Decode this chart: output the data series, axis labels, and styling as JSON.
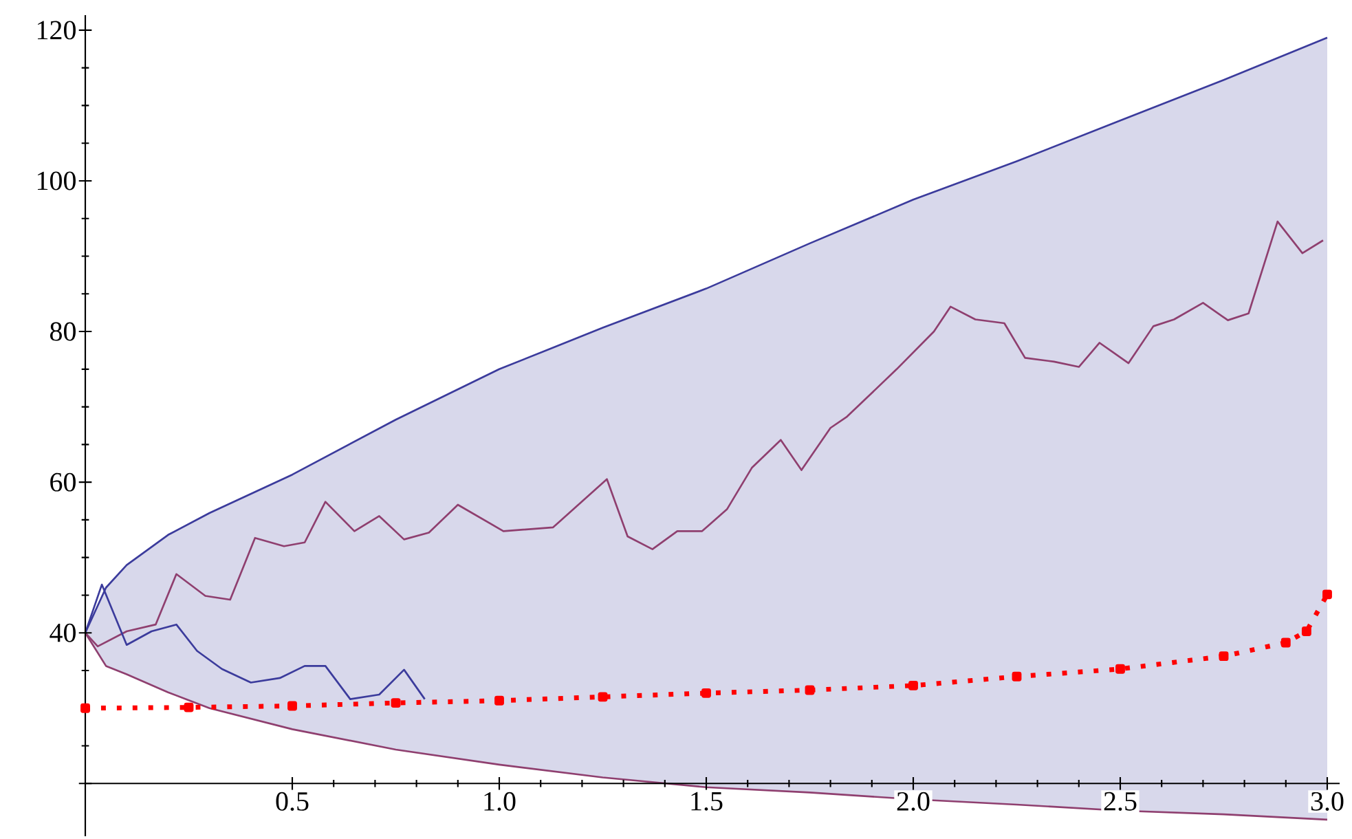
{
  "chart_data": {
    "type": "line",
    "xlim": [
      0,
      3.03
    ],
    "ylim": [
      13,
      122
    ],
    "xticks": [
      {
        "value": 0.5,
        "label": "0.5"
      },
      {
        "value": 1,
        "label": "1.0"
      },
      {
        "value": 1.5,
        "label": "1.5"
      },
      {
        "value": 2,
        "label": "2.0"
      },
      {
        "value": 2.5,
        "label": "2.5"
      },
      {
        "value": 3,
        "label": "3.0"
      }
    ],
    "yticks": [
      {
        "value": 20,
        "label": null
      },
      40,
      60,
      80,
      100,
      120
    ],
    "series": [
      {
        "color": "#3b3b9c",
        "x": [
          0,
          0.05,
          0.1,
          0.2,
          0.3,
          0.5,
          0.75,
          1,
          1.25,
          1.5,
          1.75,
          2,
          2.25,
          2.5,
          2.75,
          3
        ],
        "values": [
          40,
          46,
          49,
          53,
          55.9,
          61,
          68.3,
          75,
          80.5,
          85.7,
          91.7,
          97.5,
          102.6,
          108,
          113.4,
          119
        ],
        "lower": [
          40,
          35.6,
          34.5,
          32.1,
          30,
          27.2,
          24.5,
          22.5,
          20.8,
          19.5,
          18.8,
          17.9,
          17.2,
          16.4,
          15.9,
          15.2
        ],
        "upper": [
          40,
          46,
          49,
          53,
          55.9,
          61,
          68.3,
          75,
          80.5,
          85.7,
          91.7,
          97.5,
          102.6,
          108,
          113.4,
          119
        ]
      },
      {
        "color": "#8f3f6f",
        "x": [
          0,
          0.05,
          0.1,
          0.2,
          0.3,
          0.5,
          0.75,
          1,
          1.25,
          1.5,
          1.75,
          2,
          2.25,
          2.5,
          2.75,
          3
        ],
        "values": [
          40,
          35.6,
          34.5,
          32.1,
          30,
          27.2,
          24.5,
          22.5,
          20.8,
          19.5,
          18.8,
          17.9,
          17.2,
          16.4,
          15.9,
          15.2
        ]
      },
      {
        "color": "#8f3f6f",
        "x": [
          0,
          0.03,
          0.1,
          0.17,
          0.22,
          0.29,
          0.35,
          0.41,
          0.48,
          0.53,
          0.58,
          0.65,
          0.71,
          0.77,
          0.83,
          0.9,
          1.01,
          1.13,
          1.26,
          1.31,
          1.37,
          1.43,
          1.49,
          1.55,
          1.61,
          1.68,
          1.73,
          1.8,
          1.84,
          1.96,
          2.05,
          2.09,
          2.15,
          2.22,
          2.27,
          2.34,
          2.4,
          2.45,
          2.52,
          2.58,
          2.63,
          2.7,
          2.76,
          2.81,
          2.88,
          2.94,
          2.99
        ],
        "values": [
          40,
          38.2,
          40.2,
          41.1,
          47.8,
          44.9,
          44.4,
          52.6,
          51.5,
          52,
          57.4,
          53.5,
          55.5,
          52.4,
          53.3,
          57,
          53.5,
          54,
          60.4,
          52.8,
          51.1,
          53.5,
          53.5,
          56.4,
          61.9,
          65.6,
          61.6,
          67.2,
          68.7,
          75,
          80,
          83.3,
          81.6,
          81.1,
          76.5,
          76,
          75.3,
          78.5,
          75.8,
          80.7,
          81.6,
          83.8,
          81.5,
          82.4,
          94.6,
          90.4,
          92.1
        ]
      },
      {
        "color": "#3b3b9c",
        "x": [
          0,
          0.04,
          0.1,
          0.16,
          0.22,
          0.27,
          0.33,
          0.4,
          0.47,
          0.53,
          0.58,
          0.64,
          0.71,
          0.77,
          0.82
        ],
        "values": [
          40,
          46.4,
          38.4,
          40.2,
          41.1,
          37.6,
          35.2,
          33.4,
          34,
          35.6,
          35.6,
          31.2,
          31.8,
          35.1,
          31.2
        ]
      },
      {
        "color": "#ff0000",
        "line_style": "dotted",
        "marker": "square",
        "x": [
          0,
          0.25,
          0.5,
          0.75,
          1,
          1.25,
          1.5,
          1.75,
          2,
          2.25,
          2.5,
          2.75,
          2.9,
          2.95,
          3
        ],
        "values": [
          30,
          30.1,
          30.3,
          30.7,
          31,
          31.5,
          32,
          32.4,
          33,
          34.2,
          35.2,
          36.9,
          38.7,
          40.2,
          45.1
        ]
      }
    ]
  }
}
